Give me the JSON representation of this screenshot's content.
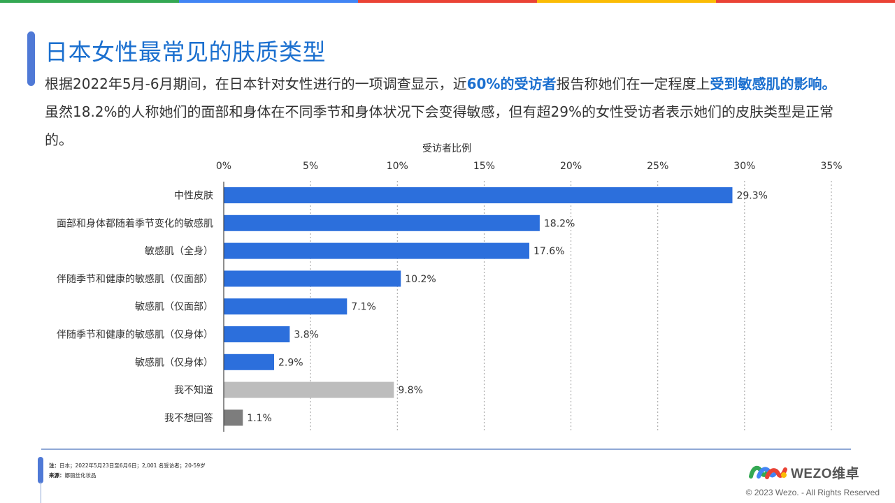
{
  "title": "日本女性最常见的肤质类型",
  "intro": {
    "part1": "根据2022年5月-6月期间，在日本针对女性进行的一项调查显示，近",
    "highlight1": "60%的受访者",
    "part2": "报告称她们在一定程度上",
    "highlight2": "受到敏感肌的影响。",
    "part3": "虽然18.2%的人称她们的面部和身体在不同季节和身体状况下会变得敏感，但有超29%的女性受访者表示她们的皮肤类型是正常的。"
  },
  "colors": {
    "stripe": [
      "#34a853",
      "#4285f4",
      "#ea4335",
      "#fbbc05",
      "#ea4335"
    ],
    "primary": "#1a6fcf",
    "bar_main": "#2c6fdc",
    "bar_dont_know": "#bdbdbd",
    "bar_no_answer": "#7d7d7d"
  },
  "chart_data": {
    "type": "bar",
    "orientation": "horizontal",
    "title": "",
    "xlabel": "受访者比例",
    "ylabel": "",
    "xlim": [
      0,
      35
    ],
    "x_ticks": [
      "0%",
      "5%",
      "10%",
      "15%",
      "20%",
      "25%",
      "30%",
      "35%"
    ],
    "x_axis_position": "top",
    "grid": "vertical dotted",
    "categories": [
      "中性皮肤",
      "面部和身体都随着季节变化的敏感肌",
      "敏感肌（全身）",
      "伴随季节和健康的敏感肌（仅面部）",
      "敏感肌（仅面部）",
      "伴随季节和健康的敏感肌（仅身体）",
      "敏感肌（仅身体）",
      "我不知道",
      "我不想回答"
    ],
    "values": [
      29.3,
      18.2,
      17.6,
      10.2,
      7.1,
      3.8,
      2.9,
      9.8,
      1.1
    ],
    "data_labels": [
      "29.3%",
      "18.2%",
      "17.6%",
      "10.2%",
      "7.1%",
      "3.8%",
      "2.9%",
      "9.8%",
      "1.1%"
    ],
    "bar_colors": [
      "#2c6fdc",
      "#2c6fdc",
      "#2c6fdc",
      "#2c6fdc",
      "#2c6fdc",
      "#2c6fdc",
      "#2c6fdc",
      "#bdbdbd",
      "#7d7d7d"
    ]
  },
  "footer": {
    "note_label": "注：",
    "note_text": "日本；2022年5月23日至6月6日；2,001 名受访者；20-59岁",
    "source_label": "来源：",
    "source_text": "娜丽丝化妆品",
    "logo_text": "WEZO维卓",
    "copyright": "© 2023 Wezo. - All Rights Reserved"
  }
}
